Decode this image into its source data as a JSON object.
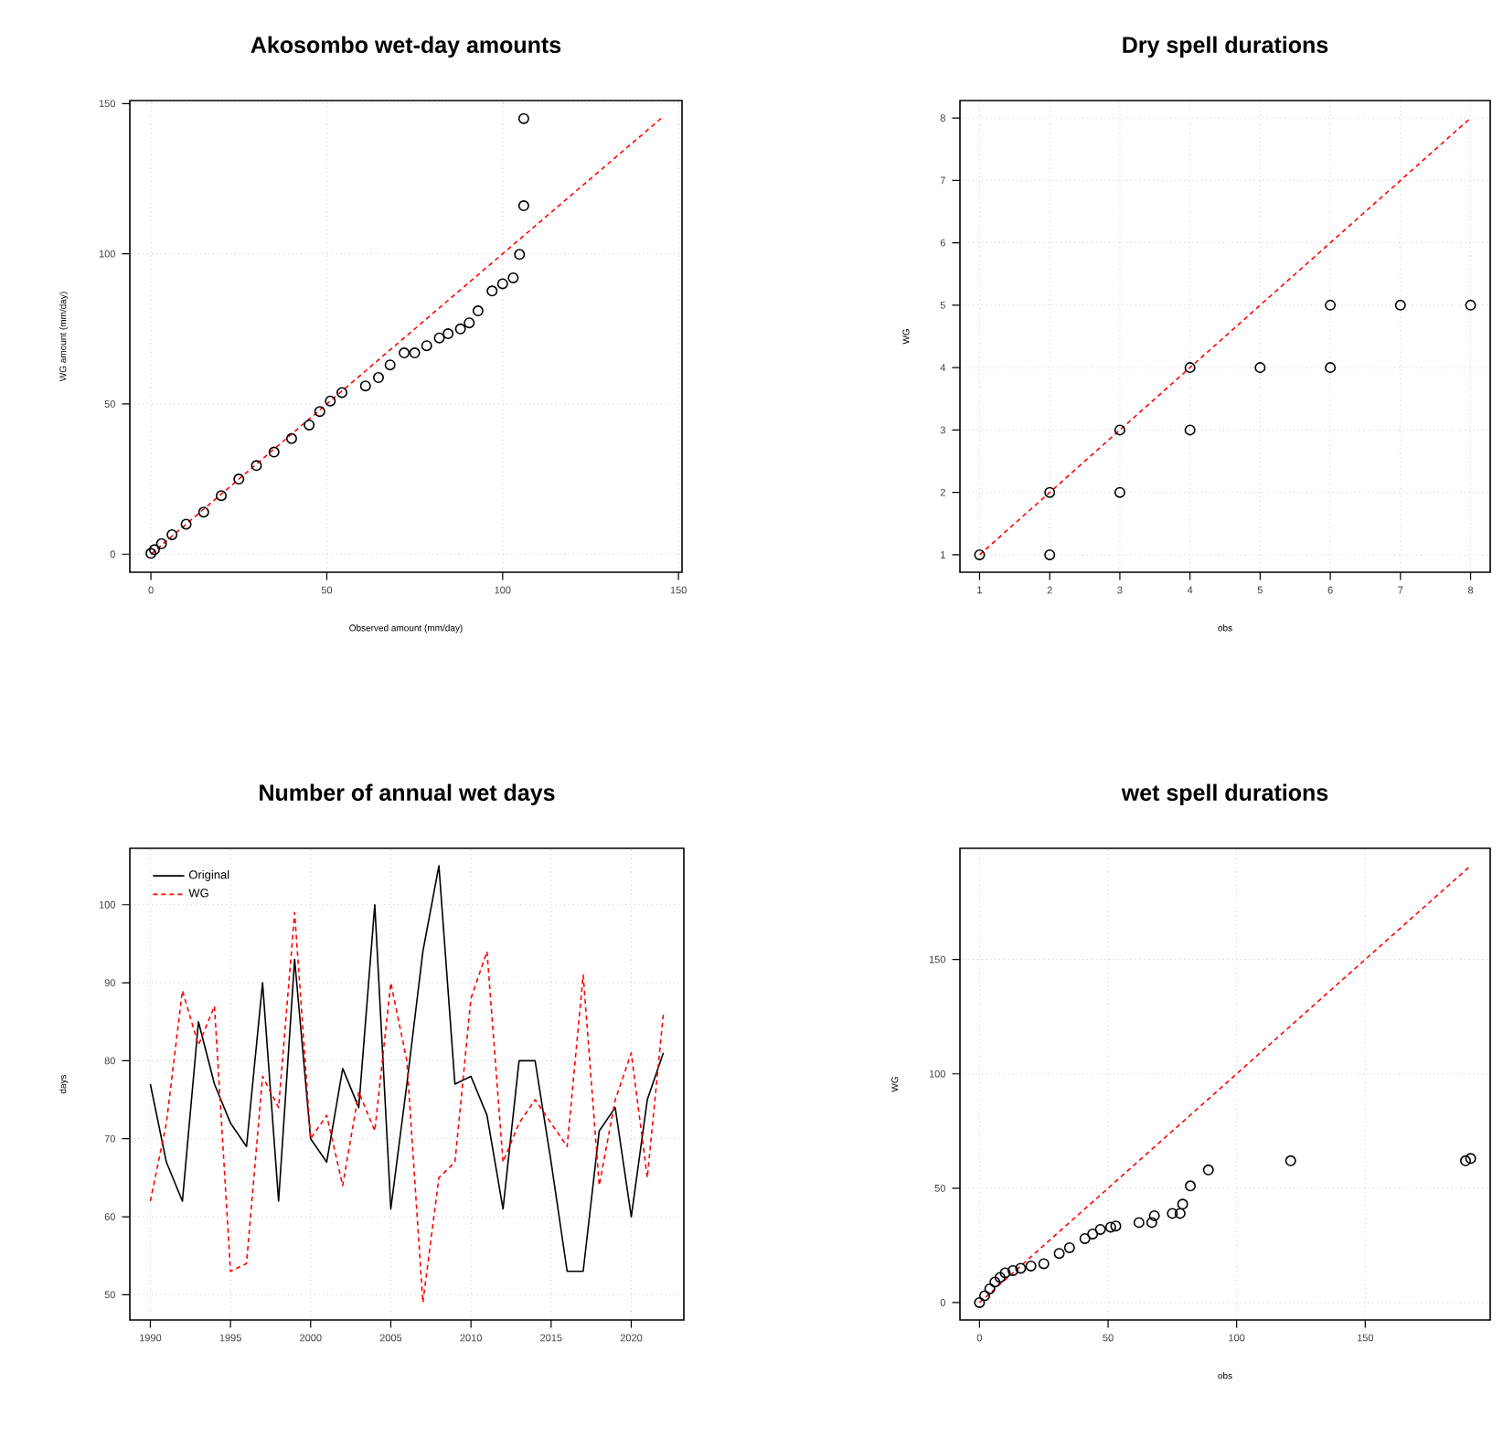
{
  "chart_data": [
    {
      "type": "scatter",
      "title": "Akosombo wet-day amounts",
      "xlabel": "Observed amount (mm/day)",
      "ylabel": "WG amount (mm/day)",
      "xlim": [
        -6,
        151
      ],
      "ylim": [
        -6,
        151
      ],
      "xticks": [
        0,
        50,
        100,
        150
      ],
      "yticks": [
        0,
        50,
        100,
        150
      ],
      "grid": true,
      "series": [
        {
          "type": "scatter",
          "marker": "circle",
          "color": "#000000",
          "x": [
            0,
            1,
            3,
            6,
            10,
            15,
            20,
            25,
            30,
            35,
            40,
            45,
            48,
            51,
            54.3,
            61,
            64.7,
            68,
            72,
            75,
            78.4,
            82,
            84.5,
            88,
            90.5,
            93,
            97,
            100,
            103,
            104.8,
            106,
            106
          ],
          "values": [
            0.3,
            1.5,
            3.5,
            6.5,
            10,
            14,
            19.5,
            25,
            29.5,
            34,
            38.5,
            43,
            47.5,
            51,
            53.8,
            56,
            58.8,
            63,
            67,
            67,
            69.4,
            72,
            73.4,
            75,
            77,
            81,
            87.6,
            90,
            92,
            99.8,
            116,
            145
          ]
        },
        {
          "type": "line",
          "color": "#ff0000",
          "line_style": "dashed",
          "x": [
            0,
            145
          ],
          "values": [
            0,
            145
          ]
        }
      ]
    },
    {
      "type": "scatter",
      "title": "Dry spell durations",
      "xlabel": "obs",
      "ylabel": "WG",
      "xlim": [
        0.72,
        8.28
      ],
      "ylim": [
        0.72,
        8.28
      ],
      "xticks": [
        1,
        2,
        3,
        4,
        5,
        6,
        7,
        8
      ],
      "yticks": [
        1,
        2,
        3,
        4,
        5,
        6,
        7,
        8
      ],
      "grid": true,
      "series": [
        {
          "type": "scatter",
          "marker": "circle",
          "color": "#000000",
          "x": [
            1,
            2,
            2,
            3,
            3,
            4,
            4,
            5,
            6,
            6,
            7,
            8
          ],
          "values": [
            1,
            2,
            1,
            3,
            2,
            4,
            3,
            4,
            5,
            4,
            5,
            5
          ]
        },
        {
          "type": "line",
          "color": "#ff0000",
          "line_style": "dashed",
          "x": [
            1,
            8
          ],
          "values": [
            1,
            8
          ]
        }
      ]
    },
    {
      "type": "line",
      "title": "Number of annual wet days",
      "ylabel": "days",
      "xlim": [
        1988.72,
        2023.28
      ],
      "ylim": [
        46.76,
        107.24
      ],
      "xticks": [
        1990,
        1995,
        2000,
        2005,
        2010,
        2015,
        2020
      ],
      "yticks": [
        50,
        60,
        70,
        80,
        90,
        100
      ],
      "grid": true,
      "legend": "top left",
      "x": [
        1990,
        1991,
        1992,
        1993,
        1994,
        1995,
        1996,
        1997,
        1998,
        1999,
        2000,
        2001,
        2002,
        2003,
        2004,
        2005,
        2006,
        2007,
        2008,
        2009,
        2010,
        2011,
        2012,
        2013,
        2014,
        2015,
        2016,
        2017,
        2018,
        2019,
        2020,
        2021,
        2022
      ],
      "series": [
        {
          "name": "Original",
          "color": "#000000",
          "line_style": "solid",
          "values": [
            77,
            67,
            62,
            85,
            77,
            72,
            69,
            90,
            62,
            93,
            70,
            67,
            79,
            74,
            100,
            61,
            77,
            94,
            105,
            77,
            78,
            73,
            61,
            80,
            80,
            67,
            53,
            53,
            71,
            74,
            60,
            75,
            81
          ]
        },
        {
          "name": "WG",
          "color": "#ff0000",
          "line_style": "dashed",
          "values": [
            62,
            72,
            89,
            82,
            87,
            53,
            54,
            78,
            74,
            99,
            70,
            73,
            64,
            76,
            71,
            90,
            80,
            49,
            65,
            67,
            88,
            94,
            67,
            72,
            75,
            72,
            69,
            91,
            64,
            75,
            81,
            65,
            86
          ]
        }
      ]
    },
    {
      "type": "scatter",
      "title": "wet spell durations",
      "xlabel": "obs",
      "ylabel": "WG",
      "xlim": [
        -7.6,
        198.6
      ],
      "ylim": [
        -7.6,
        198.6
      ],
      "xticks": [
        0,
        50,
        100,
        150
      ],
      "yticks": [
        0,
        50,
        100,
        150
      ],
      "grid": true,
      "series": [
        {
          "type": "scatter",
          "marker": "circle",
          "color": "#000000",
          "x": [
            0,
            2,
            4,
            6,
            8,
            10,
            13,
            16,
            20,
            25,
            31,
            35,
            41,
            44,
            47,
            51,
            53,
            62,
            67,
            68,
            75,
            78,
            79,
            82,
            89,
            121,
            189,
            191
          ],
          "values": [
            0,
            3,
            6,
            9,
            11,
            13,
            14,
            15,
            16,
            17,
            21.5,
            24,
            28,
            30,
            32,
            33,
            33.5,
            35,
            35,
            38,
            39,
            39,
            43,
            51,
            58,
            62,
            62,
            63
          ]
        },
        {
          "type": "line",
          "color": "#ff0000",
          "line_style": "dashed",
          "x": [
            0,
            191
          ],
          "values": [
            0,
            191
          ]
        }
      ]
    }
  ]
}
